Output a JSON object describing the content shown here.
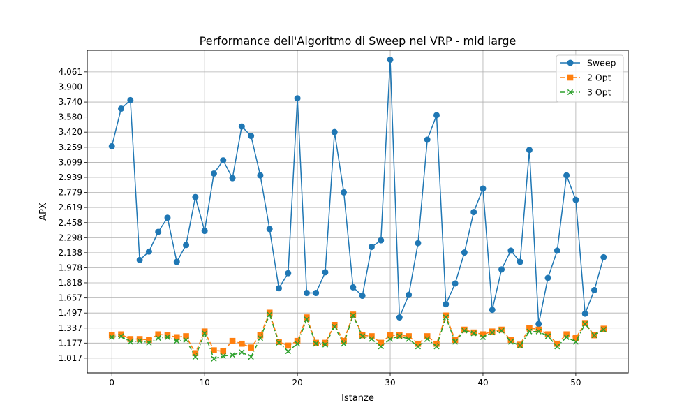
{
  "chart_data": {
    "type": "line",
    "title": "Performance dell'Algoritmo di Sweep nel VRP - mid large",
    "xlabel": "Istanze",
    "ylabel": "APX",
    "xlim": [
      -2.65,
      55.65
    ],
    "ylim": [
      0.86,
      4.29
    ],
    "x_ticks": [
      0,
      10,
      20,
      30,
      40,
      50
    ],
    "y_ticks": [
      1.017,
      1.177,
      1.337,
      1.497,
      1.657,
      1.818,
      1.978,
      2.138,
      2.298,
      2.458,
      2.619,
      2.779,
      2.939,
      3.099,
      3.259,
      3.42,
      3.58,
      3.74,
      3.9,
      4.061
    ],
    "y_tick_labels": [
      "1.017",
      "1.177",
      "1.337",
      "1.497",
      "1.657",
      "1.818",
      "1.978",
      "2.138",
      "2.298",
      "2.458",
      "2.619",
      "2.779",
      "2.939",
      "3.099",
      "3.259",
      "3.420",
      "3.580",
      "3.740",
      "3.900",
      "4.061"
    ],
    "grid": true,
    "legend_position": "top-right",
    "x": [
      0,
      1,
      2,
      3,
      4,
      5,
      6,
      7,
      8,
      9,
      10,
      11,
      12,
      13,
      14,
      15,
      16,
      17,
      18,
      19,
      20,
      21,
      22,
      23,
      24,
      25,
      26,
      27,
      28,
      29,
      30,
      31,
      32,
      33,
      34,
      35,
      36,
      37,
      38,
      39,
      40,
      41,
      42,
      43,
      44,
      45,
      46,
      47,
      48,
      49,
      50,
      51,
      52,
      53
    ],
    "series": [
      {
        "name": "Sweep",
        "color": "#1f77b4",
        "marker": "circle",
        "line": "solid",
        "values": [
          3.27,
          3.67,
          3.76,
          2.06,
          2.15,
          2.36,
          2.51,
          2.04,
          2.22,
          2.73,
          2.37,
          2.98,
          3.12,
          2.93,
          3.48,
          3.38,
          2.96,
          2.39,
          1.76,
          1.92,
          3.78,
          1.71,
          1.71,
          1.93,
          3.42,
          2.78,
          1.77,
          1.68,
          2.2,
          2.27,
          4.19,
          1.45,
          1.69,
          2.24,
          3.34,
          3.6,
          1.59,
          1.81,
          2.14,
          2.57,
          2.82,
          1.53,
          1.96,
          2.16,
          2.04,
          3.23,
          1.38,
          1.87,
          2.16,
          2.96,
          2.7,
          1.49,
          1.74,
          2.09
        ]
      },
      {
        "name": "2 Opt",
        "color": "#ff7f0e",
        "marker": "square",
        "line": "dashed",
        "values": [
          1.26,
          1.27,
          1.22,
          1.22,
          1.21,
          1.27,
          1.26,
          1.24,
          1.25,
          1.07,
          1.3,
          1.1,
          1.09,
          1.2,
          1.17,
          1.13,
          1.26,
          1.5,
          1.19,
          1.15,
          1.2,
          1.45,
          1.18,
          1.18,
          1.37,
          1.2,
          1.48,
          1.26,
          1.25,
          1.18,
          1.26,
          1.26,
          1.25,
          1.17,
          1.25,
          1.17,
          1.47,
          1.21,
          1.32,
          1.29,
          1.27,
          1.3,
          1.32,
          1.21,
          1.16,
          1.34,
          1.32,
          1.27,
          1.17,
          1.27,
          1.23,
          1.39,
          1.26,
          1.33
        ]
      },
      {
        "name": "3 Opt",
        "color": "#2ca02c",
        "marker": "x",
        "line": "dashdot",
        "values": [
          1.24,
          1.25,
          1.19,
          1.2,
          1.18,
          1.23,
          1.24,
          1.2,
          1.21,
          1.03,
          1.28,
          1.01,
          1.04,
          1.05,
          1.08,
          1.03,
          1.23,
          1.48,
          1.18,
          1.09,
          1.17,
          1.43,
          1.17,
          1.16,
          1.35,
          1.17,
          1.47,
          1.25,
          1.22,
          1.14,
          1.22,
          1.25,
          1.22,
          1.14,
          1.22,
          1.14,
          1.45,
          1.19,
          1.31,
          1.28,
          1.24,
          1.29,
          1.31,
          1.19,
          1.15,
          1.3,
          1.3,
          1.25,
          1.14,
          1.24,
          1.19,
          1.38,
          1.26,
          1.32
        ]
      }
    ]
  }
}
